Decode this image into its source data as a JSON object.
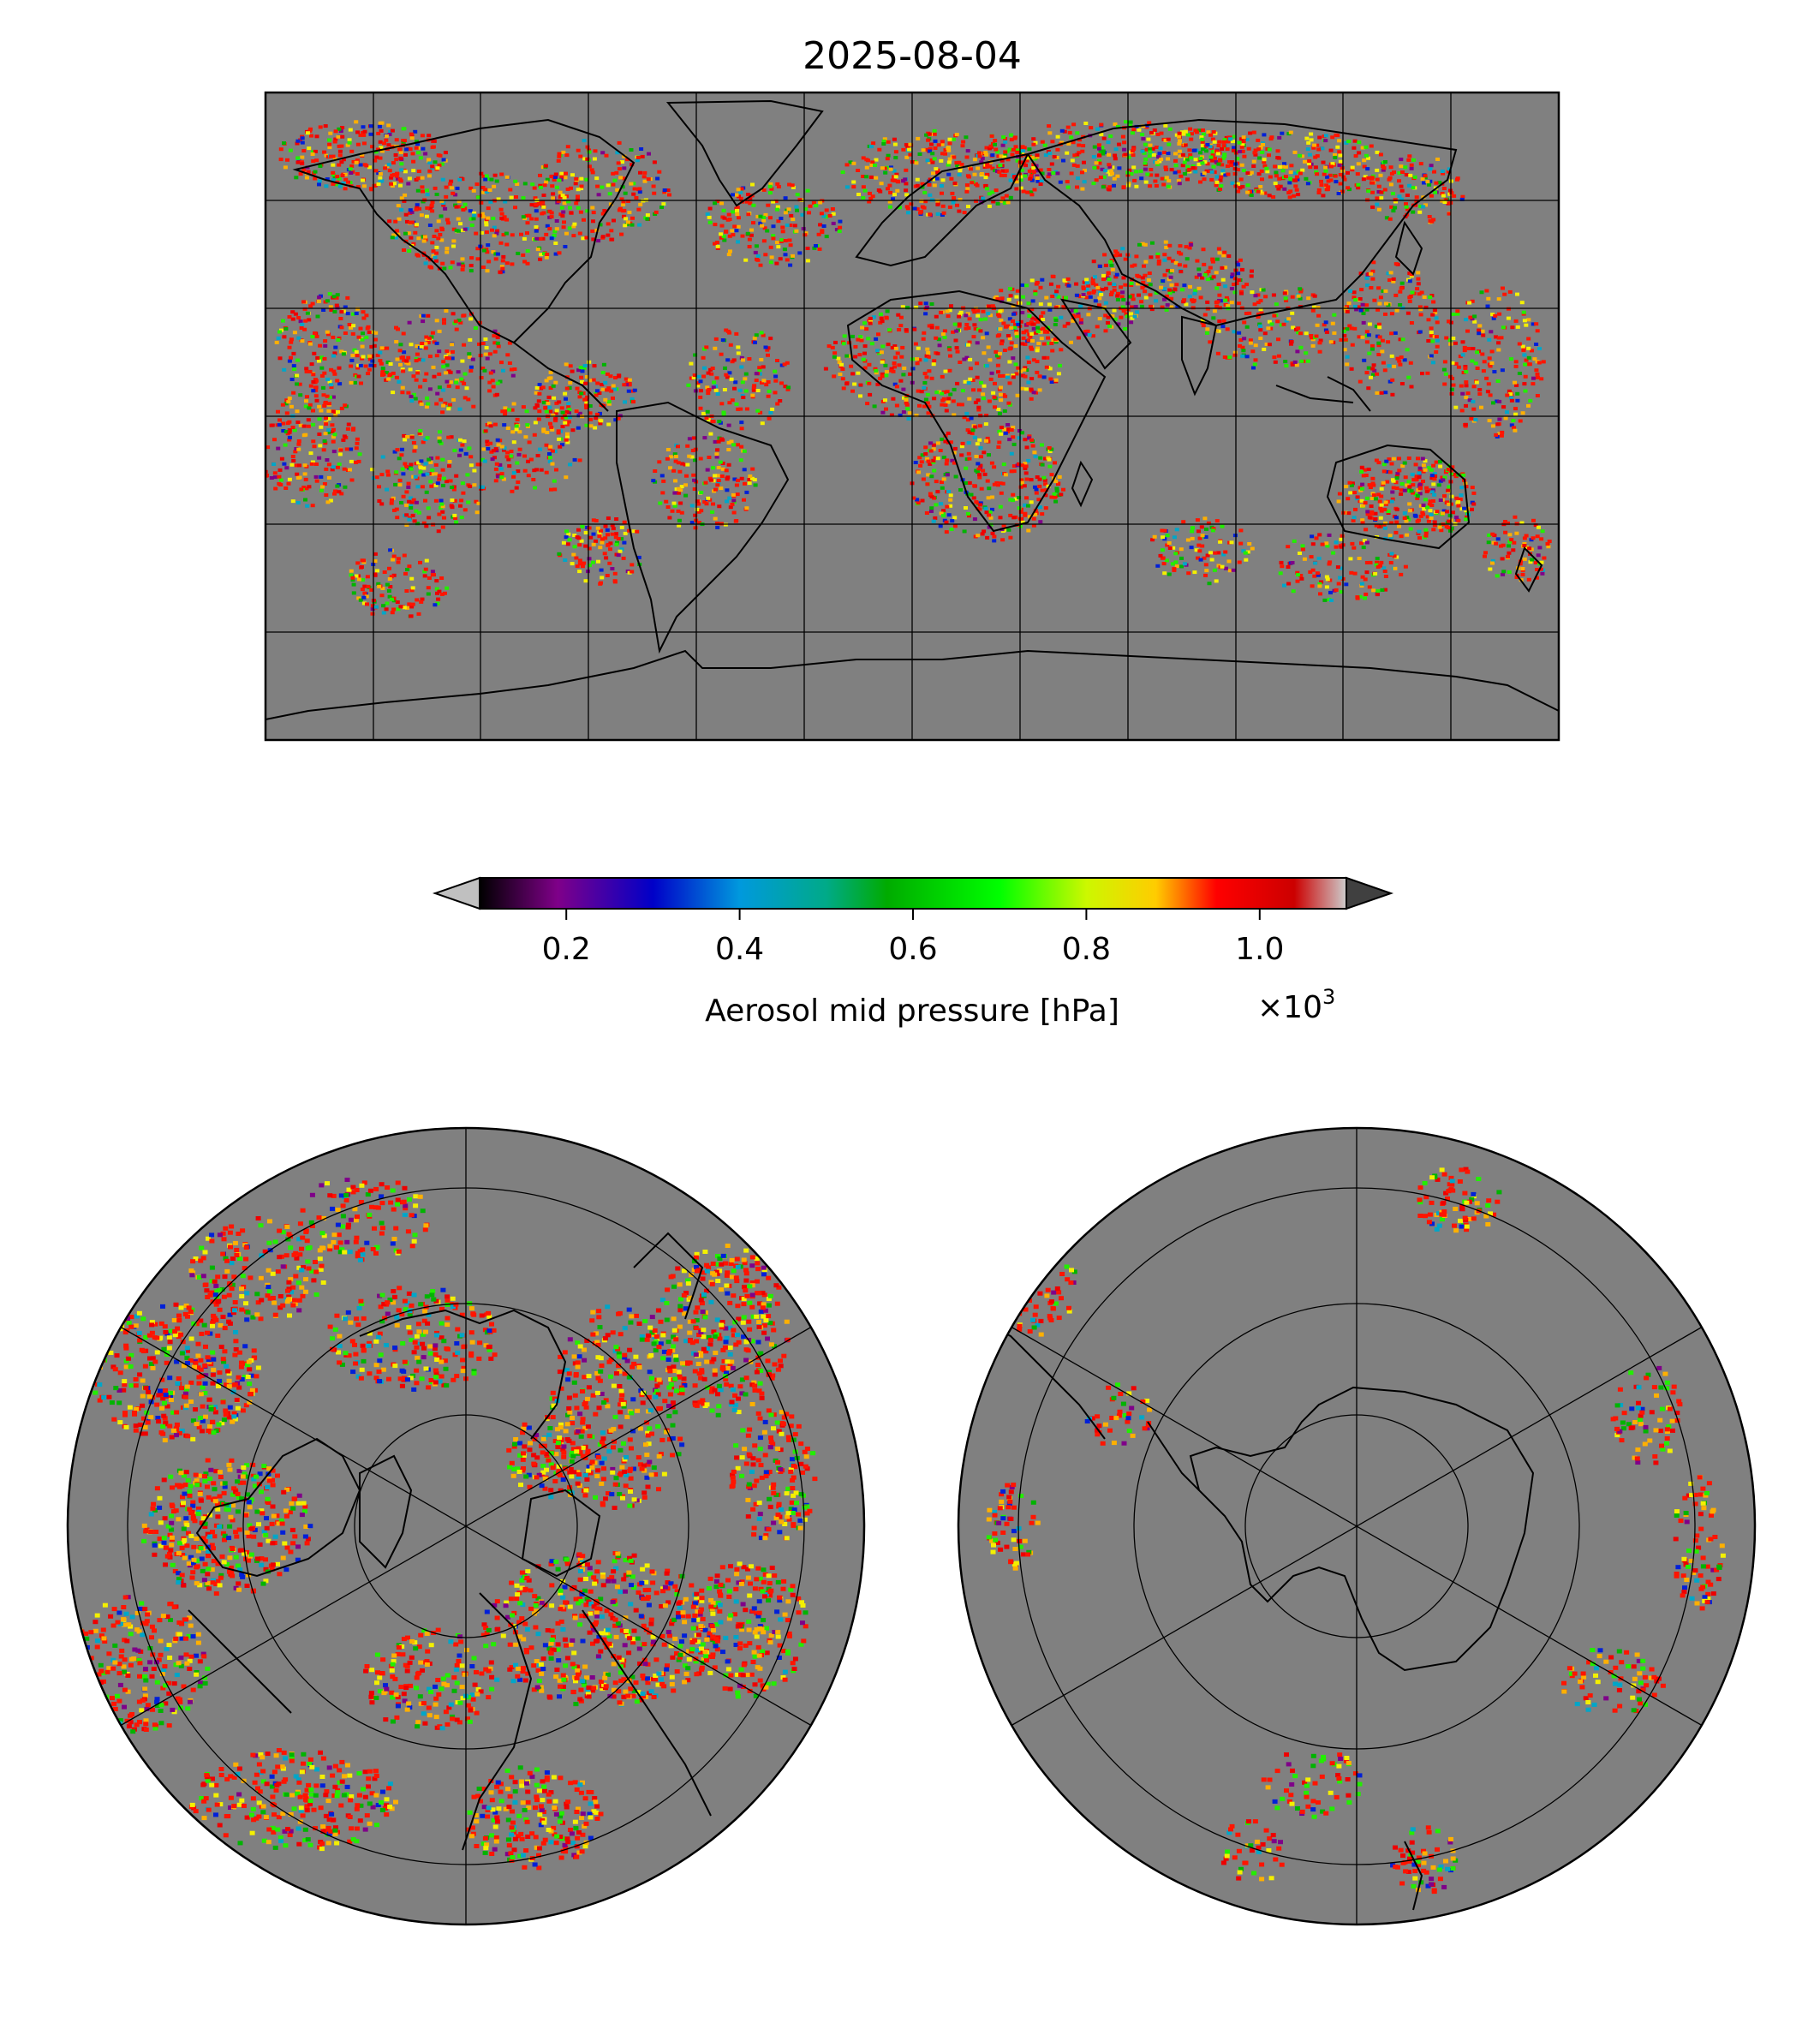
{
  "title": "2025-08-04",
  "colorbar": {
    "label": "Aerosol mid pressure [hPa]",
    "multiplier": "×10",
    "multiplier_exp": "3",
    "ticks": [
      "0.2",
      "0.4",
      "0.6",
      "0.8",
      "1.0"
    ],
    "tick_values": [
      0.2,
      0.4,
      0.6,
      0.8,
      1.0
    ],
    "range": [
      0.1,
      1.1
    ],
    "extend": "both",
    "under_color": "#c0c0c0",
    "over_color": "#404040",
    "colormap": "nipy_spectral",
    "stops": [
      "#000000",
      "#7f0089",
      "#0000c8",
      "#0099dd",
      "#00aa88",
      "#00ab00",
      "#00ff00",
      "#ccf800",
      "#ffcc00",
      "#ff0000",
      "#cc0000",
      "#cccccc"
    ]
  },
  "maps": {
    "no_data_color": "#808080",
    "coastline_color": "#000000",
    "global": {
      "projection": "equirectangular",
      "meridians_every_deg": 30,
      "parallels_every_deg": 30
    },
    "north_polar": {
      "projection": "north polar stereographic",
      "meridians": 6,
      "parallels": 4
    },
    "south_polar": {
      "projection": "south polar stereographic",
      "meridians": 6,
      "parallels": 4
    }
  }
}
